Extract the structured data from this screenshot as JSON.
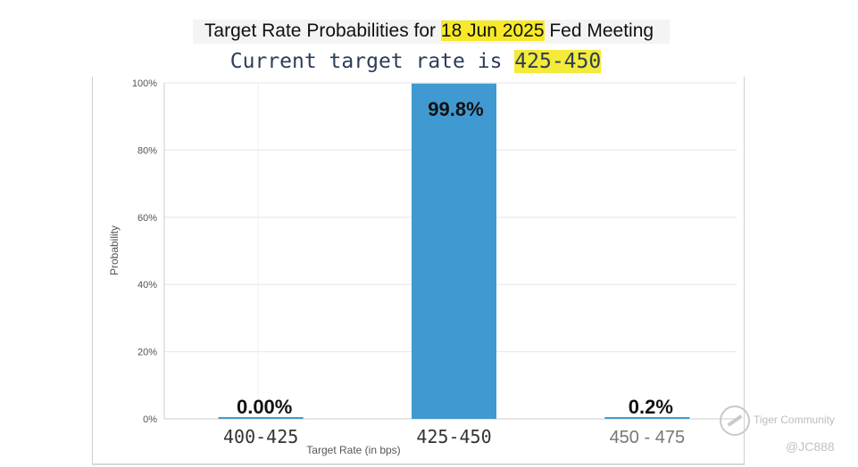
{
  "title": {
    "prefix": "Target Rate Probabilities for ",
    "date": "18 Jun 2025",
    "suffix": " Fed Meeting"
  },
  "subtitle": {
    "prefix": "Current target rate is ",
    "rate": "425-450"
  },
  "colors": {
    "bar": "#4199d1",
    "highlight": "#f7e928",
    "grid": "#e6e6e6",
    "axis_text": "#555555"
  },
  "chart_data": {
    "type": "bar",
    "title": "",
    "xlabel": "Target Rate (in bps)",
    "ylabel": "Probability",
    "ylim": [
      0,
      100
    ],
    "yticks": [
      0,
      20,
      40,
      60,
      80,
      100
    ],
    "ytick_labels": [
      "0%",
      "20%",
      "40%",
      "60%",
      "80%",
      "100%"
    ],
    "grid": true,
    "categories": [
      "400-425",
      "425-450",
      "450 - 475"
    ],
    "values": [
      0.0,
      99.8,
      0.2
    ],
    "data_labels": [
      "0.00%",
      "99.8%",
      "0.2%"
    ]
  },
  "watermark": {
    "brand": "Tiger Community",
    "handle": "@JC888"
  }
}
